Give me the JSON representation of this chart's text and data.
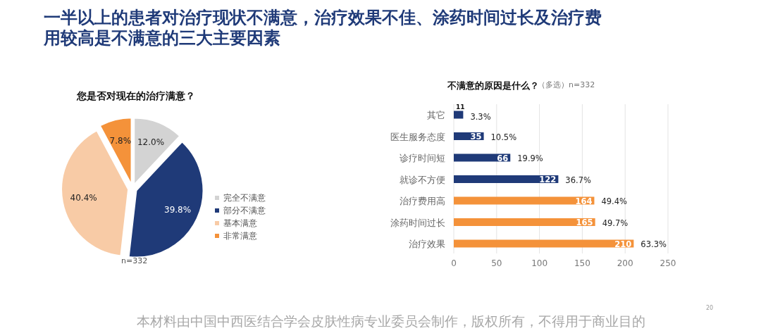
{
  "chart_data": [
    {
      "type": "pie",
      "title": "您是否对现在的治疗满意？",
      "annotations": [
        "一半以上的患者对治疗现状不满意，治疗效果不佳、涂药时间过长及治疗费用较高是不满意的三大主要因素",
        "n=332"
      ],
      "categories": [
        "完全不满意",
        "部分不满意",
        "基本满意",
        "非常满意"
      ],
      "values": [
        12.0,
        39.8,
        40.4,
        7.8
      ],
      "value_labels": [
        "12.0%",
        "39.8%",
        "40.4%",
        "7.8%"
      ],
      "colors": [
        "#d3d3d3",
        "#1f3a78",
        "#f8cba6",
        "#f4923a"
      ],
      "legend": "bottom right"
    },
    {
      "type": "bar",
      "orientation": "horizontal",
      "title": "不满意的原因是什么？",
      "subtitle": "（多选）n=332",
      "annotations": [
        "本材料由中国中西医结合学会皮肤性病专业委员会制作，版权所有，不得用于商业目的",
        "20",
        {
          "text": "3.3%",
          "x": 11,
          "y": "其它"
        },
        {
          "text": "10.5%",
          "x": 35,
          "y": "医生服务态度"
        },
        {
          "text": "19.9%",
          "x": 66,
          "y": "诊疗时间短"
        },
        {
          "text": "36.7%",
          "x": 122,
          "y": "就诊不方便"
        },
        {
          "text": "49.4%",
          "x": 164,
          "y": "治疗费用高"
        },
        {
          "text": "49.7%",
          "x": 165,
          "y": "涂药时间过长"
        },
        {
          "text": "63.3%",
          "x": 210,
          "y": "治疗效果"
        }
      ],
      "categories": [
        "其它",
        "医生服务态度",
        "诊疗时间短",
        "就诊不方便",
        "治疗费用高",
        "涂药时间过长",
        "治疗效果"
      ],
      "values": [
        11,
        35,
        66,
        122,
        164,
        165,
        210
      ],
      "value_labels": [
        "11",
        "35",
        "66",
        "122",
        "164",
        "165",
        "210"
      ],
      "colors": [
        "#1f3a78",
        "#1f3a78",
        "#1f3a78",
        "#1f3a78",
        "#f4923a",
        "#f4923a",
        "#f4923a"
      ],
      "xlim": [
        0,
        250
      ],
      "xticks": [
        0,
        50,
        100,
        150,
        200,
        250
      ],
      "grid": "x"
    }
  ]
}
